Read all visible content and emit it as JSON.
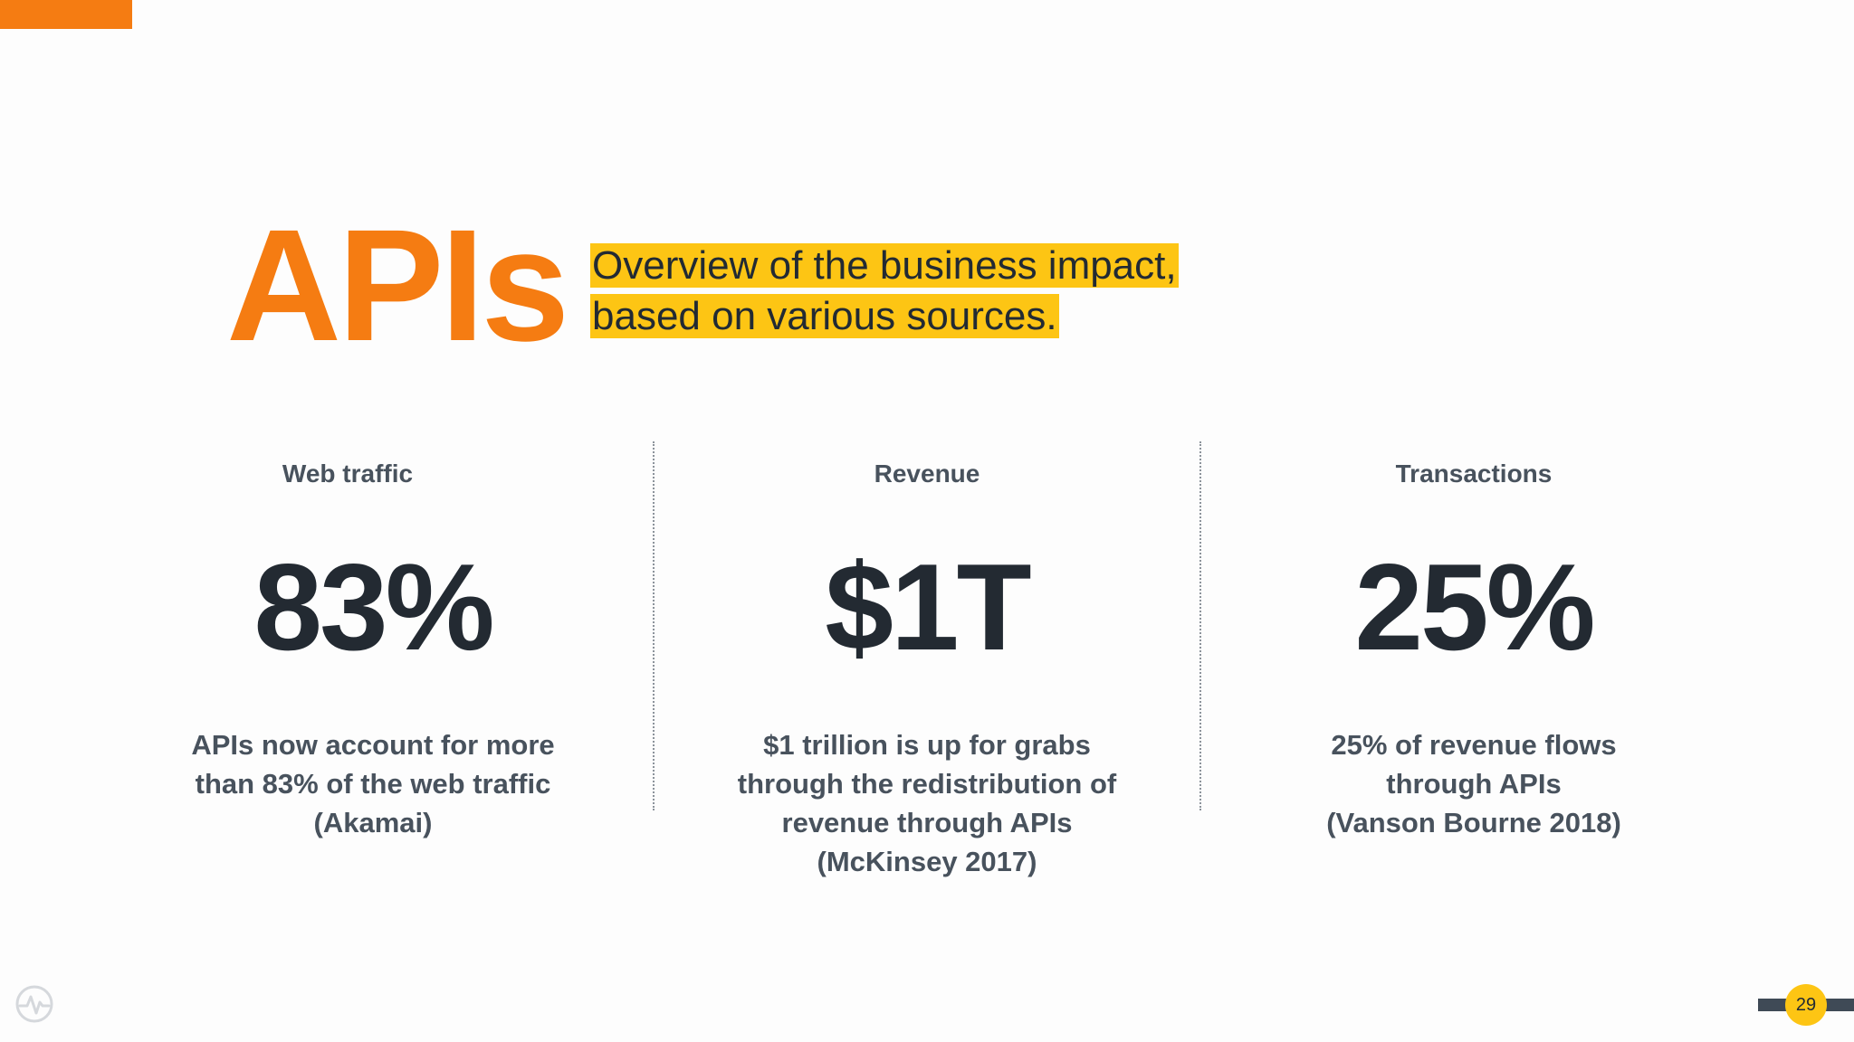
{
  "slide": {
    "title": "APIs",
    "subtitle_line1": "Overview of the business impact,",
    "subtitle_line2": "based on various sources."
  },
  "stats": [
    {
      "label": "Web traffic",
      "value": "83%",
      "description": [
        "APIs now account for more",
        "than 83% of the web traffic",
        "(Akamai)"
      ]
    },
    {
      "label": "Revenue",
      "value": "$1T",
      "description": [
        "$1 trillion is up for grabs",
        "through the redistribution of",
        "revenue through APIs",
        "(McKinsey 2017)"
      ]
    },
    {
      "label": "Transactions",
      "value": "25%",
      "description": [
        "25%  of revenue flows",
        "through APIs",
        "(Vanson Bourne 2018)"
      ]
    }
  ],
  "footer": {
    "page_number": "29",
    "logo_icon": "pulse-circle-icon"
  },
  "colors": {
    "accent": "#f57c12",
    "highlight": "#fdc514",
    "dark_text": "#232a32",
    "muted_text": "#48525d",
    "footer_bar": "#3f4a56"
  }
}
